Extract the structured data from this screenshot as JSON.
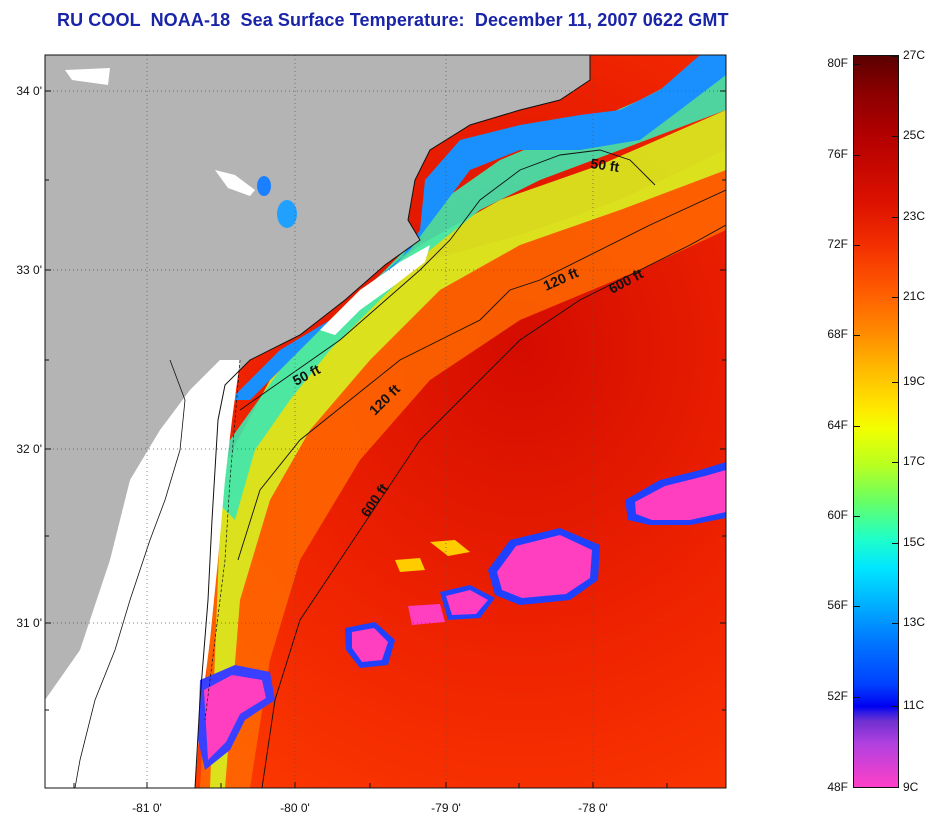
{
  "title": "RU COOL  NOAA-18  Sea Surface Temperature:  December 11, 2007 0622 GMT",
  "latitude_labels": [
    "34 0'",
    "33 0'",
    "32 0'",
    "31 0'"
  ],
  "longitude_labels": [
    "-81 0'",
    "-80 0'",
    "-79 0'",
    "-78 0'"
  ],
  "isobath_labels": [
    "50 ft",
    "50 ft",
    "120 ft",
    "120 ft",
    "600 ft",
    "600 ft"
  ],
  "colorbar": {
    "fahrenheit_labels": [
      "80F",
      "76F",
      "72F",
      "68F",
      "64F",
      "60F",
      "56F",
      "52F",
      "48F"
    ],
    "celsius_labels": [
      "27C",
      "25C",
      "23C",
      "21C",
      "19C",
      "17C",
      "15C",
      "13C",
      "11C",
      "9C"
    ]
  },
  "colors": {
    "title": "#1a24a8",
    "land": "#b4b4b4",
    "cloud_masked": "#ffffff",
    "warm_gulf_stream": "#ee2200",
    "cool_shelf": "#1aa0ff",
    "coldest": "#ff3ec0"
  },
  "icons": [
    "colorbar-icon",
    "coastline-icon",
    "isobath-contour-icon"
  ]
}
